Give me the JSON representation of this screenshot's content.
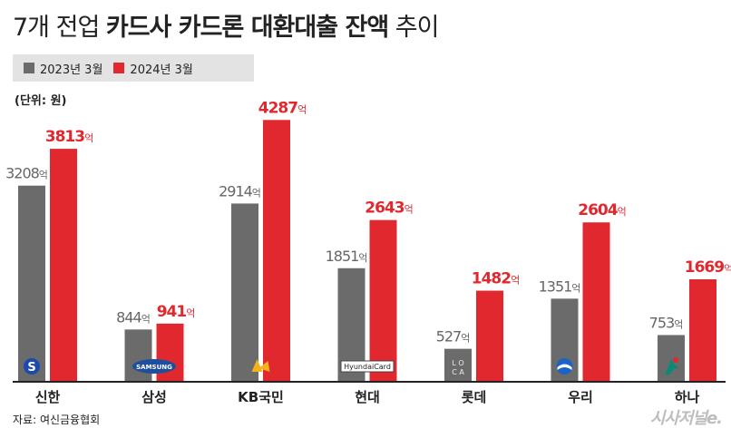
{
  "header": {
    "title_light_1": "7개 전업 ",
    "title_bold": "카드사 카드론 대환대출 잔액",
    "title_light_2": " 추이"
  },
  "unit": "(단위: 원)",
  "source": "자료: 여신금융협회",
  "brand": "시사저널e.",
  "colors": {
    "s2023": "#6b6b6b",
    "s2024": "#e0282e",
    "axis": "#222222",
    "label2023": "#666666",
    "label2024": "#e0282e"
  },
  "chart_data": {
    "type": "bar",
    "categories": [
      "신한",
      "삼성",
      "KB국민",
      "현대",
      "롯데",
      "우리",
      "하나"
    ],
    "series": [
      {
        "name": "2023년 3월",
        "values": [
          3208,
          844,
          2914,
          1851,
          527,
          1351,
          753
        ]
      },
      {
        "name": "2024년 3월",
        "values": [
          3813,
          941,
          4287,
          2643,
          1482,
          2604,
          1669
        ]
      }
    ],
    "value_suffix": "억",
    "category_logos": [
      "shinhan-logo-icon",
      "samsung-logo-icon",
      "kb-logo-icon",
      "hyundaicard-logo-icon",
      "loca-logo-icon",
      "woori-logo-icon",
      "hana-logo-icon"
    ],
    "logo_texts": [
      "",
      "SAMSUNG",
      "",
      "HyundaiCard",
      "LOCA",
      "",
      ""
    ],
    "ylim": [
      0,
      4500
    ]
  }
}
